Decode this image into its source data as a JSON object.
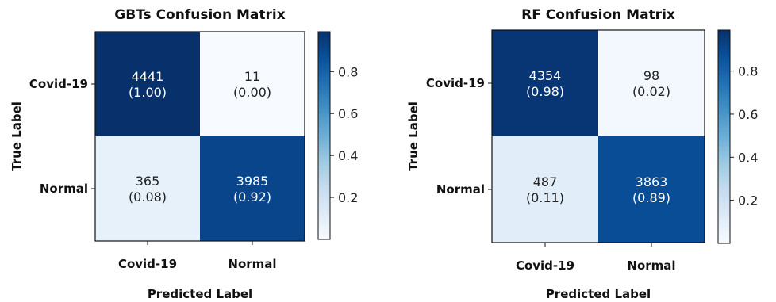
{
  "chart_data": [
    {
      "type": "heatmap",
      "title": "GBTs Confusion Matrix",
      "xlabel": "Predicted Label",
      "ylabel": "True Label",
      "x_categories": [
        "Covid-19",
        "Normal"
      ],
      "y_categories": [
        "Covid-19",
        "Normal"
      ],
      "counts": [
        [
          4441,
          11
        ],
        [
          365,
          3985
        ]
      ],
      "fractions": [
        [
          1.0,
          0.0
        ],
        [
          0.08,
          0.92
        ]
      ],
      "fraction_labels": [
        [
          "(1.00)",
          "(0.00)"
        ],
        [
          "(0.08)",
          "(0.92)"
        ]
      ],
      "colorbar": {
        "range": [
          0,
          1
        ],
        "ticks": [
          0.2,
          0.4,
          0.6,
          0.8
        ],
        "tick_labels": [
          "0.2",
          "0.4",
          "0.6",
          "0.8"
        ],
        "colormap": "Blues"
      }
    },
    {
      "type": "heatmap",
      "title": "RF Confusion Matrix",
      "xlabel": "Predicted Label",
      "ylabel": "True Label",
      "x_categories": [
        "Covid-19",
        "Normal"
      ],
      "y_categories": [
        "Covid-19",
        "Normal"
      ],
      "counts": [
        [
          4354,
          98
        ],
        [
          487,
          3863
        ]
      ],
      "fractions": [
        [
          0.98,
          0.02
        ],
        [
          0.11,
          0.89
        ]
      ],
      "fraction_labels": [
        [
          "(0.98)",
          "(0.02)"
        ],
        [
          "(0.11)",
          "(0.89)"
        ]
      ],
      "colorbar": {
        "range": [
          0,
          1
        ],
        "ticks": [
          0.2,
          0.4,
          0.6,
          0.8
        ],
        "tick_labels": [
          "0.2",
          "0.4",
          "0.6",
          "0.8"
        ],
        "colormap": "Blues"
      }
    }
  ],
  "colors": {
    "low": "#f7fbff",
    "high": "#08306b"
  }
}
